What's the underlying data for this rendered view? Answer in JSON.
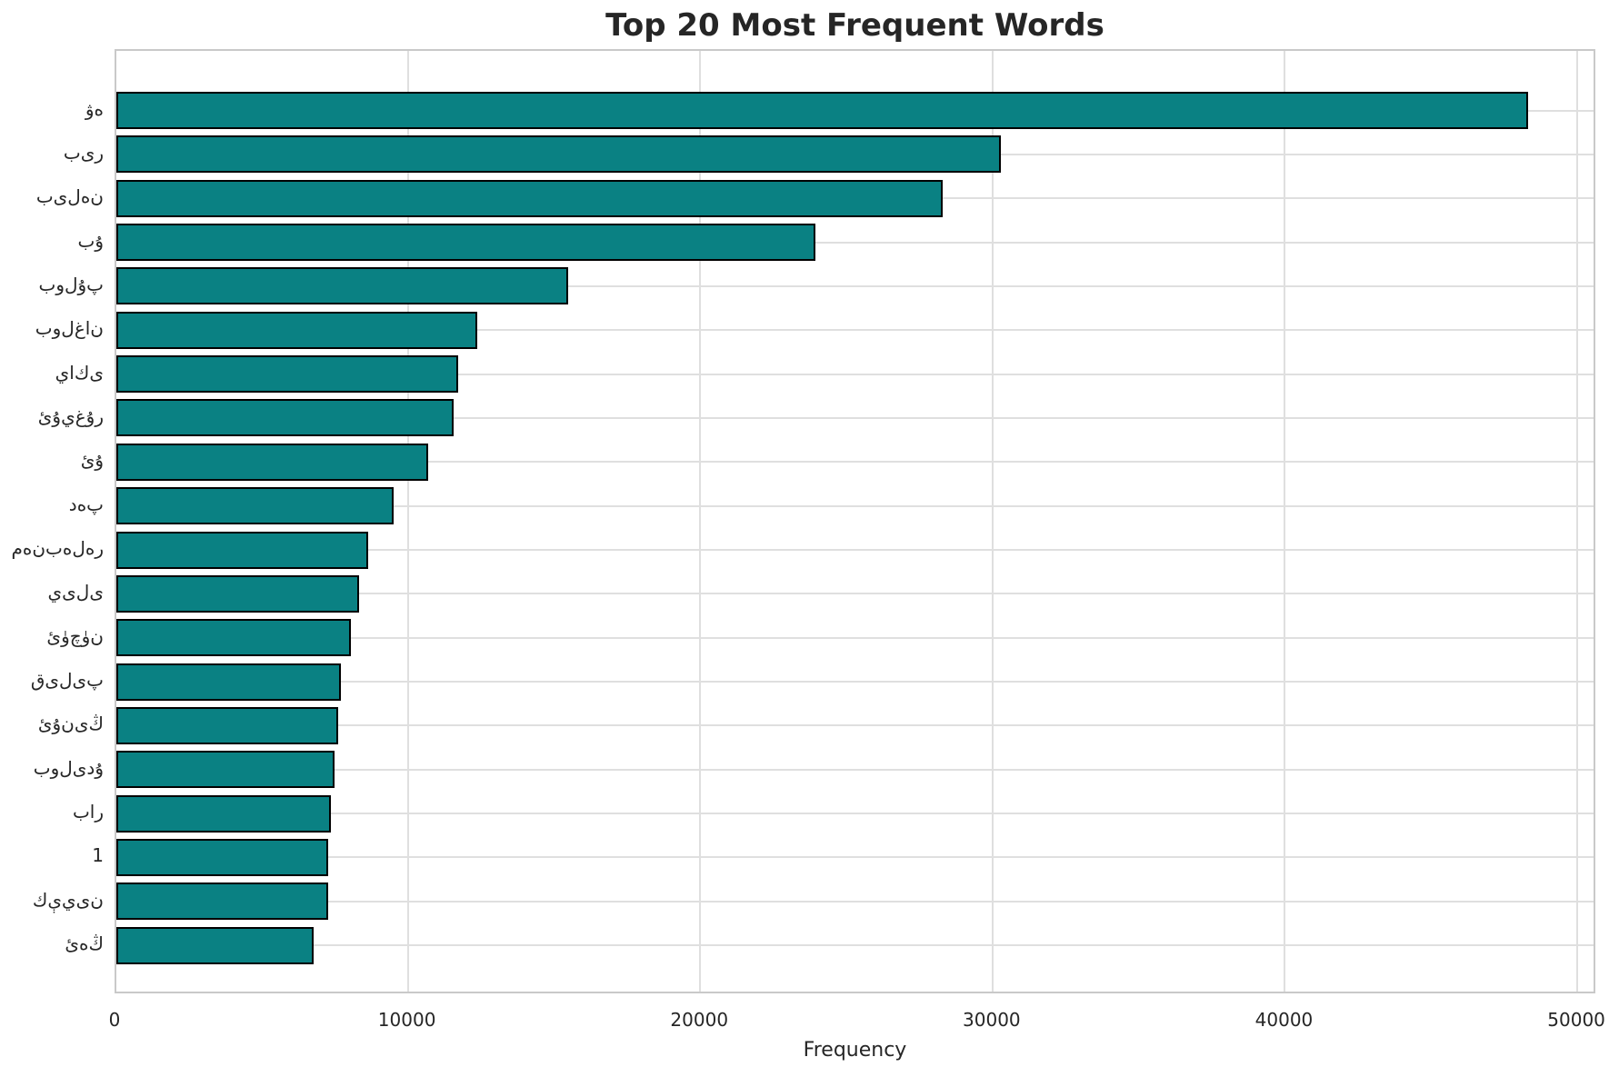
{
  "chart_data": {
    "type": "bar",
    "orientation": "horizontal",
    "title": "Top 20 Most Frequent Words",
    "xlabel": "Frequency",
    "ylabel": "",
    "categories": [
      "ۋە",
      "بىر",
      "بىلەن",
      "بۇ",
      "بولۇپ",
      "بولغان",
      "ياكى",
      "ئۇيغۇر",
      "ئۇ",
      "دەپ",
      "مەنبەلەر",
      "يىلى",
      "ئۈچۈن",
      "قىلىپ",
      "ئۇنىڭ",
      "بولىدۇ",
      "بار",
      "1",
      "كېيىن",
      "ئەڭ"
    ],
    "values": [
      48300,
      30250,
      28250,
      23900,
      15450,
      12350,
      11700,
      11550,
      10650,
      9480,
      8600,
      8300,
      8020,
      7680,
      7590,
      7460,
      7340,
      7250,
      7230,
      6750
    ],
    "xticks": [
      0,
      10000,
      20000,
      30000,
      40000,
      50000
    ],
    "xlim": [
      0,
      50650
    ],
    "grid": true,
    "legend": false,
    "bar_color": "#0a8183",
    "bar_edge_color": "#000000",
    "grid_color": "#dfdfdf",
    "text_color": "#262626",
    "background_color": "#ffffff"
  }
}
